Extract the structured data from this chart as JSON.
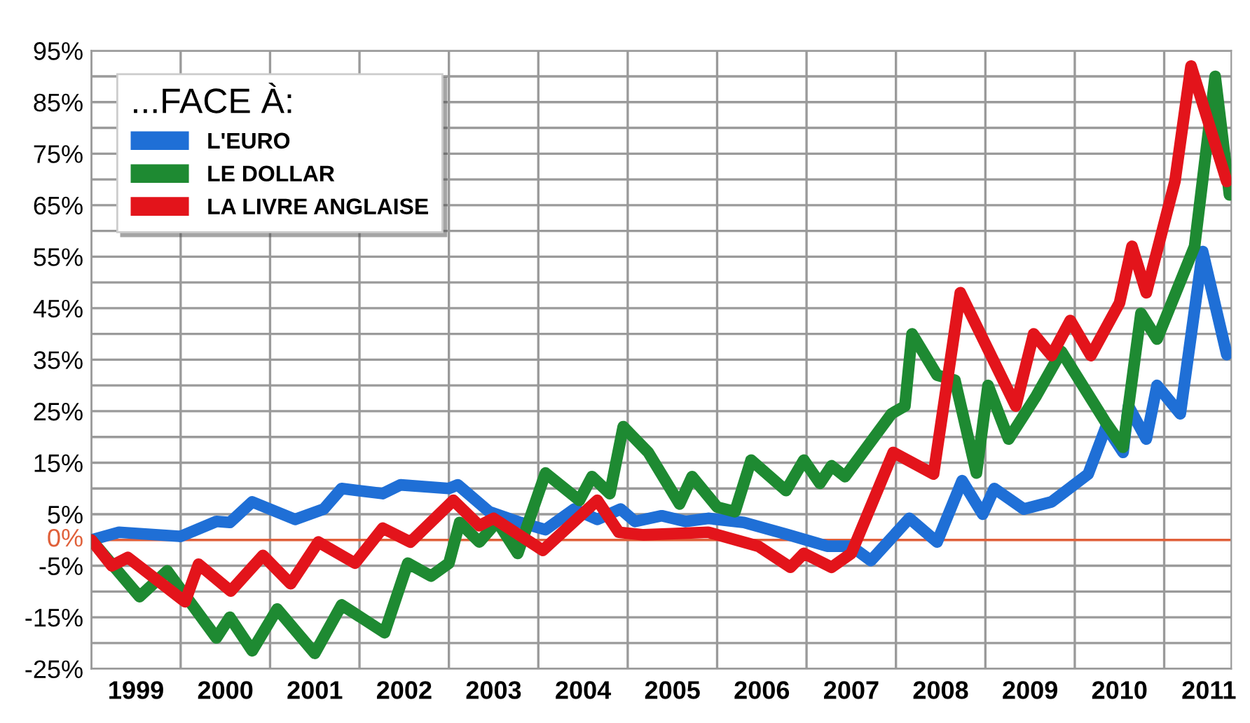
{
  "chart_data": {
    "type": "line",
    "legend_title": "...FACE À:",
    "legend": "top left",
    "grid": true,
    "line_style": "solid",
    "xlim": [
      1999,
      2011.75
    ],
    "xticks": [
      {
        "value": 1999,
        "label": null
      },
      {
        "value": 1999.5,
        "label": "1999"
      },
      {
        "value": 2000,
        "label": null
      },
      {
        "value": 2000.5,
        "label": "2000"
      },
      {
        "value": 2001,
        "label": null
      },
      {
        "value": 2001.5,
        "label": "2001"
      },
      {
        "value": 2002,
        "label": null
      },
      {
        "value": 2002.5,
        "label": "2002"
      },
      {
        "value": 2003,
        "label": null
      },
      {
        "value": 2003.5,
        "label": "2003"
      },
      {
        "value": 2004,
        "label": null
      },
      {
        "value": 2004.5,
        "label": "2004"
      },
      {
        "value": 2005,
        "label": null
      },
      {
        "value": 2005.5,
        "label": "2005"
      },
      {
        "value": 2006,
        "label": null
      },
      {
        "value": 2006.5,
        "label": "2006"
      },
      {
        "value": 2007,
        "label": null
      },
      {
        "value": 2007.5,
        "label": "2007"
      },
      {
        "value": 2008,
        "label": null
      },
      {
        "value": 2008.5,
        "label": "2008"
      },
      {
        "value": 2009,
        "label": null
      },
      {
        "value": 2009.5,
        "label": "2009"
      },
      {
        "value": 2010,
        "label": null
      },
      {
        "value": 2010.5,
        "label": "2010"
      },
      {
        "value": 2011,
        "label": null
      },
      {
        "value": 2011.5,
        "label": "2011"
      }
    ],
    "ylim": [
      -25,
      95
    ],
    "yticks": [
      {
        "value": 95,
        "label": "95%"
      },
      {
        "value": 90,
        "label": null
      },
      {
        "value": 85,
        "label": "85%"
      },
      {
        "value": 80,
        "label": null
      },
      {
        "value": 75,
        "label": "75%"
      },
      {
        "value": 70,
        "label": null
      },
      {
        "value": 65,
        "label": "65%"
      },
      {
        "value": 60,
        "label": null
      },
      {
        "value": 55,
        "label": "55%"
      },
      {
        "value": 50,
        "label": null
      },
      {
        "value": 45,
        "label": "45%"
      },
      {
        "value": 40,
        "label": null
      },
      {
        "value": 35,
        "label": "35%"
      },
      {
        "value": 30,
        "label": null
      },
      {
        "value": 25,
        "label": "25%"
      },
      {
        "value": 20,
        "label": null
      },
      {
        "value": 15,
        "label": "15%"
      },
      {
        "value": 10,
        "label": null
      },
      {
        "value": 5,
        "label": "5%"
      },
      {
        "value": -5,
        "label": "-5%"
      },
      {
        "value": -10,
        "label": null
      },
      {
        "value": -15,
        "label": "-15%"
      },
      {
        "value": -20,
        "label": null
      },
      {
        "value": -25,
        "label": "-25%"
      }
    ],
    "ref_lines": [
      {
        "axis": "y",
        "value": 0,
        "label": "0%",
        "color": "#e0603a"
      }
    ],
    "series": [
      {
        "name": "L'EURO",
        "color": "#1f6fd6",
        "x": [
          1999.0,
          1999.31,
          2000.0,
          2000.4,
          2000.55,
          2000.8,
          2001.28,
          2001.6,
          2001.8,
          2002.26,
          2002.46,
          2003.0,
          2003.1,
          2003.45,
          2003.8,
          2004.08,
          2004.4,
          2004.66,
          2004.92,
          2005.08,
          2005.38,
          2005.65,
          2005.9,
          2006.3,
          2006.8,
          2007.23,
          2007.5,
          2007.72,
          2008.15,
          2008.46,
          2008.74,
          2008.97,
          2009.1,
          2009.43,
          2009.74,
          2010.15,
          2010.35,
          2010.54,
          2010.6,
          2010.8,
          2010.92,
          2011.18,
          2011.43,
          2011.7
        ],
        "values": [
          0,
          1.5,
          0.7,
          3.6,
          3.4,
          7.4,
          4,
          6,
          10,
          9,
          10.7,
          10,
          10.7,
          5.5,
          3.4,
          2,
          6,
          4,
          6,
          3.6,
          4.7,
          3.6,
          4.2,
          3.4,
          1,
          -1.2,
          -1.2,
          -4,
          4.2,
          -0.4,
          11.5,
          5,
          10,
          6,
          7.4,
          12.8,
          22,
          17,
          26,
          19.6,
          30,
          24.5,
          56,
          36
        ]
      },
      {
        "name": "LE DOLLAR",
        "color": "#1e8a32",
        "x": [
          1999.0,
          1999.54,
          1999.85,
          2000.4,
          2000.55,
          2000.8,
          2001.08,
          2001.5,
          2001.8,
          2002.28,
          2002.54,
          2002.8,
          2003.0,
          2003.12,
          2003.34,
          2003.54,
          2003.77,
          2004.08,
          2004.46,
          2004.6,
          2004.8,
          2004.95,
          2005.23,
          2005.58,
          2005.72,
          2006.0,
          2006.2,
          2006.38,
          2006.77,
          2006.97,
          2007.15,
          2007.28,
          2007.43,
          2007.95,
          2008.1,
          2008.18,
          2008.46,
          2008.66,
          2008.9,
          2009.03,
          2009.26,
          2009.57,
          2009.85,
          2010.34,
          2010.54,
          2010.74,
          2010.92,
          2011.34,
          2011.57,
          2011.73
        ],
        "values": [
          0,
          -11,
          -6,
          -19,
          -15,
          -21.5,
          -13.4,
          -22,
          -12.6,
          -18,
          -4.5,
          -7,
          -4.5,
          3.4,
          -0.4,
          3.6,
          -2.6,
          13,
          7.7,
          12.3,
          9,
          22,
          17,
          7,
          12.3,
          6.4,
          5.5,
          15.5,
          9.6,
          15.5,
          11,
          14.4,
          12.3,
          24.5,
          26,
          40,
          32,
          31,
          13,
          30,
          19.6,
          28,
          36.6,
          23,
          18,
          44,
          39,
          57,
          90,
          67
        ]
      },
      {
        "name": "LA LIVRE ANGLAISE",
        "color": "#e3141b",
        "x": [
          1999.0,
          1999.23,
          1999.41,
          2000.05,
          2000.2,
          2000.56,
          2000.92,
          2001.23,
          2001.54,
          2001.95,
          2002.26,
          2002.57,
          2003.05,
          2003.34,
          2003.5,
          2004.05,
          2004.66,
          2004.9,
          2005.18,
          2005.9,
          2006.46,
          2006.82,
          2006.97,
          2007.28,
          2007.5,
          2007.97,
          2008.42,
          2008.72,
          2009.34,
          2009.54,
          2009.74,
          2009.95,
          2010.18,
          2010.5,
          2010.64,
          2010.8,
          2011.12,
          2011.3,
          2011.7
        ],
        "values": [
          0,
          -5,
          -3.4,
          -12,
          -4.7,
          -9.9,
          -3,
          -8.5,
          -0.4,
          -4.5,
          2.3,
          -0.4,
          7.7,
          2.8,
          4.2,
          -2,
          7.7,
          1.5,
          1,
          1.5,
          -1.2,
          -5.3,
          -2.6,
          -5.3,
          -2.6,
          17,
          12.8,
          48,
          26,
          40,
          35.8,
          42.6,
          35.8,
          46,
          57,
          48,
          69.6,
          92,
          69.6
        ]
      }
    ]
  }
}
